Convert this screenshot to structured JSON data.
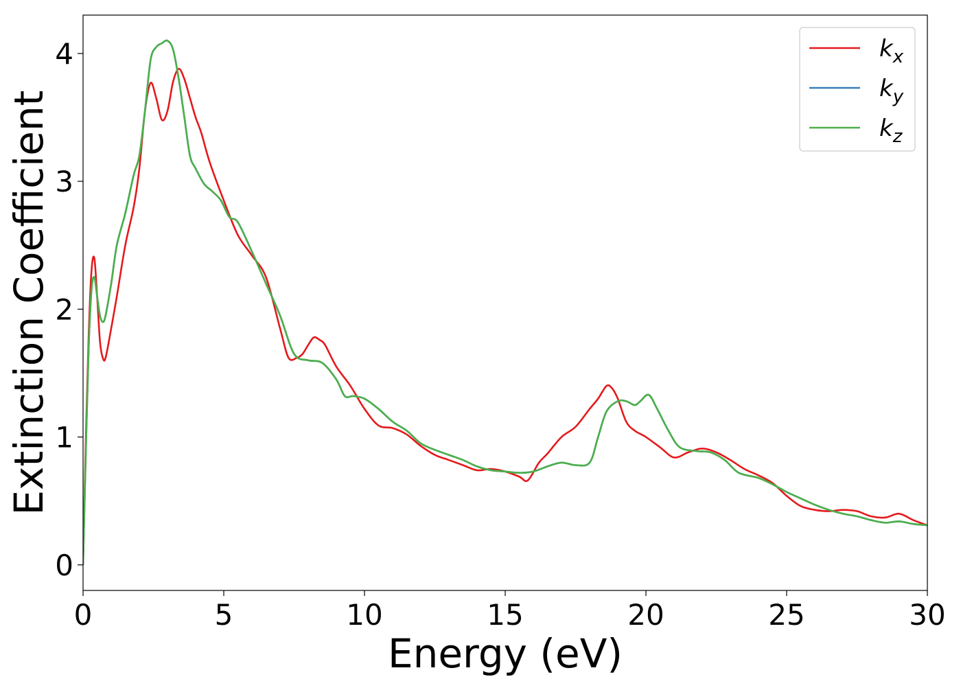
{
  "chart_data": {
    "type": "line",
    "title": "",
    "xlabel": "Energy (eV)",
    "ylabel": "Extinction Coefficient",
    "xlim": [
      0,
      30
    ],
    "ylim": [
      -0.2,
      4.3
    ],
    "xticks": [
      0,
      5,
      10,
      15,
      20,
      25,
      30
    ],
    "yticks": [
      0,
      1,
      2,
      3,
      4
    ],
    "grid": false,
    "legend_position": "top-right",
    "series": [
      {
        "name": "k_x",
        "label_base": "k",
        "label_sub": "x",
        "color": "#e41a1c",
        "x": [
          0,
          0.1,
          0.2,
          0.3,
          0.4,
          0.5,
          0.6,
          0.7,
          0.8,
          1.0,
          1.2,
          1.5,
          1.8,
          2.0,
          2.2,
          2.4,
          2.6,
          2.8,
          3.0,
          3.2,
          3.4,
          3.6,
          3.8,
          4.0,
          4.2,
          4.5,
          5.0,
          5.5,
          6.0,
          6.5,
          7.0,
          7.3,
          7.6,
          7.8,
          8.0,
          8.2,
          8.4,
          8.6,
          9.0,
          9.5,
          10.0,
          10.5,
          11.0,
          11.5,
          12.0,
          12.5,
          13.0,
          13.5,
          14.0,
          14.5,
          15.0,
          15.5,
          15.8,
          16.2,
          16.5,
          17.0,
          17.5,
          18.0,
          18.3,
          18.6,
          18.8,
          19.0,
          19.3,
          19.6,
          20.0,
          20.5,
          21.0,
          21.5,
          22.0,
          22.5,
          23.0,
          23.5,
          24.0,
          24.5,
          25.0,
          25.5,
          26.0,
          26.5,
          27.0,
          27.5,
          28.0,
          28.5,
          29.0,
          29.5,
          30.0
        ],
        "y": [
          0,
          1.0,
          1.8,
          2.3,
          2.4,
          2.1,
          1.75,
          1.62,
          1.62,
          1.85,
          2.1,
          2.5,
          2.8,
          3.1,
          3.55,
          3.77,
          3.65,
          3.48,
          3.55,
          3.78,
          3.88,
          3.8,
          3.65,
          3.5,
          3.38,
          3.15,
          2.85,
          2.58,
          2.42,
          2.25,
          1.85,
          1.62,
          1.62,
          1.65,
          1.72,
          1.78,
          1.76,
          1.72,
          1.55,
          1.4,
          1.22,
          1.09,
          1.07,
          1.02,
          0.93,
          0.86,
          0.82,
          0.78,
          0.74,
          0.75,
          0.73,
          0.69,
          0.66,
          0.8,
          0.87,
          1.0,
          1.08,
          1.22,
          1.3,
          1.4,
          1.38,
          1.3,
          1.12,
          1.05,
          1.0,
          0.92,
          0.84,
          0.88,
          0.91,
          0.88,
          0.82,
          0.75,
          0.7,
          0.64,
          0.54,
          0.46,
          0.43,
          0.42,
          0.43,
          0.42,
          0.38,
          0.37,
          0.4,
          0.35,
          0.31
        ]
      },
      {
        "name": "k_y",
        "label_base": "k",
        "label_sub": "y",
        "color": "#377eb8",
        "x": [
          0,
          0.1,
          0.2,
          0.3,
          0.4,
          0.5,
          0.6,
          0.7,
          0.8,
          1.0,
          1.2,
          1.5,
          1.8,
          2.0,
          2.2,
          2.4,
          2.6,
          2.8,
          3.0,
          3.2,
          3.4,
          3.6,
          3.8,
          4.0,
          4.3,
          4.6,
          4.9,
          5.2,
          5.5,
          6.0,
          6.5,
          7.0,
          7.5,
          8.0,
          8.5,
          9.0,
          9.3,
          9.6,
          10.0,
          10.5,
          11.0,
          11.5,
          12.0,
          12.5,
          13.0,
          13.5,
          14.0,
          14.5,
          15.0,
          15.5,
          16.0,
          16.5,
          17.0,
          17.5,
          18.0,
          18.3,
          18.6,
          19.0,
          19.3,
          19.6,
          19.8,
          20.1,
          20.4,
          20.8,
          21.2,
          21.8,
          22.3,
          22.8,
          23.3,
          24.0,
          24.5,
          25.0,
          25.5,
          26.0,
          26.5,
          27.0,
          27.5,
          28.0,
          28.5,
          29.0,
          29.5,
          30.0
        ],
        "y": [
          0,
          0.9,
          1.7,
          2.15,
          2.25,
          2.1,
          1.95,
          1.9,
          1.95,
          2.2,
          2.5,
          2.75,
          3.05,
          3.2,
          3.55,
          3.95,
          4.05,
          4.08,
          4.1,
          4.03,
          3.8,
          3.5,
          3.2,
          3.1,
          2.98,
          2.92,
          2.85,
          2.72,
          2.68,
          2.45,
          2.2,
          1.95,
          1.65,
          1.6,
          1.58,
          1.45,
          1.32,
          1.32,
          1.3,
          1.22,
          1.12,
          1.05,
          0.95,
          0.9,
          0.86,
          0.82,
          0.77,
          0.74,
          0.73,
          0.72,
          0.73,
          0.77,
          0.8,
          0.78,
          0.8,
          1.0,
          1.2,
          1.28,
          1.28,
          1.25,
          1.28,
          1.33,
          1.22,
          1.05,
          0.92,
          0.89,
          0.88,
          0.82,
          0.72,
          0.68,
          0.63,
          0.57,
          0.52,
          0.47,
          0.43,
          0.4,
          0.38,
          0.35,
          0.33,
          0.34,
          0.32,
          0.31
        ]
      },
      {
        "name": "k_z",
        "label_base": "k",
        "label_sub": "z",
        "color": "#4daf4a",
        "x": [
          0,
          0.1,
          0.2,
          0.3,
          0.4,
          0.5,
          0.6,
          0.7,
          0.8,
          1.0,
          1.2,
          1.5,
          1.8,
          2.0,
          2.2,
          2.4,
          2.6,
          2.8,
          3.0,
          3.2,
          3.4,
          3.6,
          3.8,
          4.0,
          4.3,
          4.6,
          4.9,
          5.2,
          5.5,
          6.0,
          6.5,
          7.0,
          7.5,
          8.0,
          8.5,
          9.0,
          9.3,
          9.6,
          10.0,
          10.5,
          11.0,
          11.5,
          12.0,
          12.5,
          13.0,
          13.5,
          14.0,
          14.5,
          15.0,
          15.5,
          16.0,
          16.5,
          17.0,
          17.5,
          18.0,
          18.3,
          18.6,
          19.0,
          19.3,
          19.6,
          19.8,
          20.1,
          20.4,
          20.8,
          21.2,
          21.8,
          22.3,
          22.8,
          23.3,
          24.0,
          24.5,
          25.0,
          25.5,
          26.0,
          26.5,
          27.0,
          27.5,
          28.0,
          28.5,
          29.0,
          29.5,
          30.0
        ],
        "y": [
          0,
          0.9,
          1.7,
          2.15,
          2.25,
          2.1,
          1.95,
          1.9,
          1.95,
          2.2,
          2.5,
          2.75,
          3.05,
          3.2,
          3.55,
          3.95,
          4.05,
          4.08,
          4.1,
          4.03,
          3.8,
          3.5,
          3.2,
          3.1,
          2.98,
          2.92,
          2.85,
          2.72,
          2.68,
          2.45,
          2.2,
          1.95,
          1.65,
          1.6,
          1.58,
          1.45,
          1.32,
          1.32,
          1.3,
          1.22,
          1.12,
          1.05,
          0.95,
          0.9,
          0.86,
          0.82,
          0.77,
          0.74,
          0.73,
          0.72,
          0.73,
          0.77,
          0.8,
          0.78,
          0.8,
          1.0,
          1.2,
          1.28,
          1.28,
          1.25,
          1.28,
          1.33,
          1.22,
          1.05,
          0.92,
          0.89,
          0.88,
          0.82,
          0.72,
          0.68,
          0.63,
          0.57,
          0.52,
          0.47,
          0.43,
          0.4,
          0.38,
          0.35,
          0.33,
          0.34,
          0.32,
          0.31
        ]
      }
    ]
  }
}
